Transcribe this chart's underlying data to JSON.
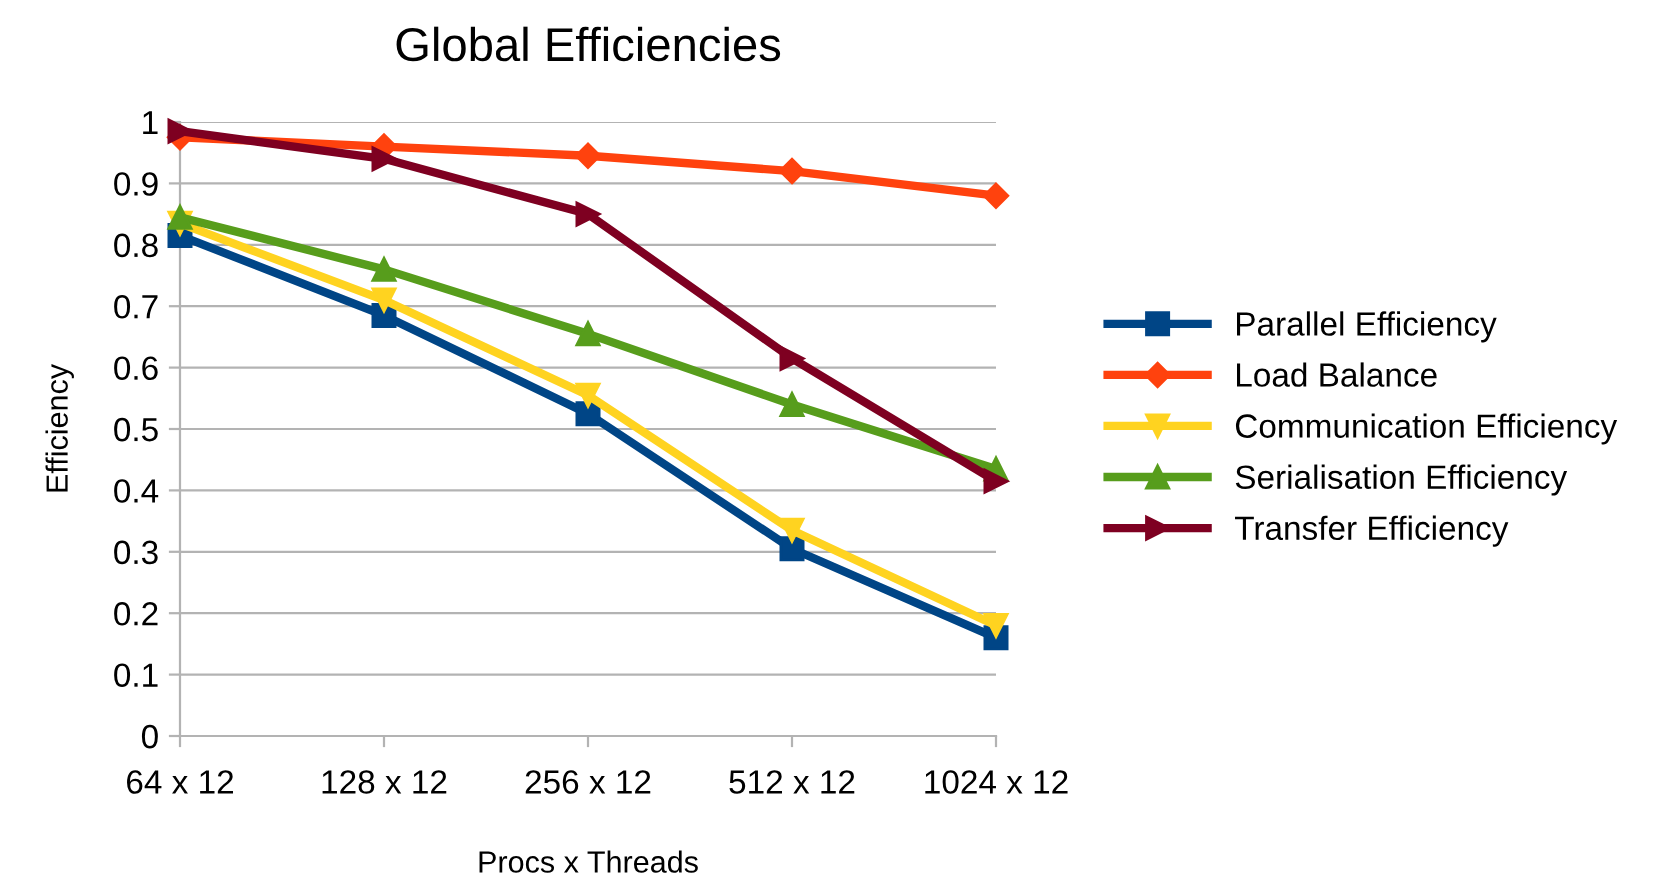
{
  "chart_data": {
    "type": "line",
    "title": "Global Efficiencies",
    "xlabel": "Procs x Threads",
    "ylabel": "Efficiency",
    "categories": [
      "64 x 12",
      "128 x 12",
      "256 x 12",
      "512 x 12",
      "1024 x 12"
    ],
    "series": [
      {
        "name": "Parallel Efficiency",
        "color": "#004586",
        "marker": "square",
        "values": [
          0.815,
          0.685,
          0.525,
          0.305,
          0.16
        ]
      },
      {
        "name": "Load Balance",
        "color": "#ff420e",
        "marker": "diamond",
        "values": [
          0.975,
          0.96,
          0.945,
          0.92,
          0.88
        ]
      },
      {
        "name": "Communication Efficiency",
        "color": "#ffd320",
        "marker": "triangle-down",
        "values": [
          0.835,
          0.71,
          0.555,
          0.335,
          0.18
        ]
      },
      {
        "name": "Serialisation Efficiency",
        "color": "#579d1c",
        "marker": "triangle",
        "values": [
          0.845,
          0.76,
          0.655,
          0.54,
          0.435
        ]
      },
      {
        "name": "Transfer Efficiency",
        "color": "#7e0021",
        "marker": "triangle-right",
        "values": [
          0.985,
          0.94,
          0.85,
          0.615,
          0.415
        ]
      }
    ],
    "ylim": [
      0,
      1
    ],
    "yticks": [
      0,
      0.1,
      0.2,
      0.3,
      0.4,
      0.5,
      0.6,
      0.7,
      0.8,
      0.9,
      1
    ],
    "grid": "y",
    "legend": "right",
    "line_style": "solid"
  }
}
